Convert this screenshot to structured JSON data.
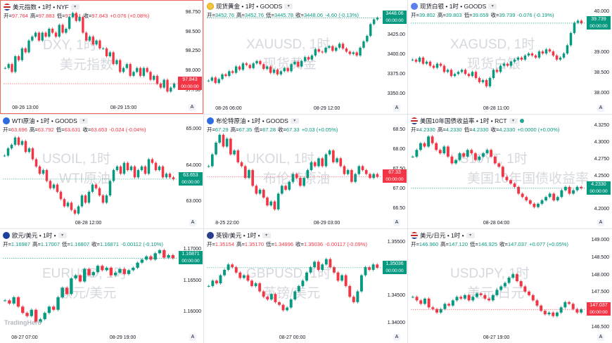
{
  "brand": "TradingHero",
  "panels": [
    {
      "id": "dxy",
      "selected": true,
      "flag": "usa",
      "title": "美元指数 • 1时 • NYF",
      "ohlc": {
        "open": "97.764",
        "high": "97.883",
        "low": "97.751",
        "close": "97.843",
        "change": "+0.076 (+0.08%)"
      },
      "direction": "down",
      "watermark": [
        "DXY, 1时",
        "美元指数"
      ],
      "y_ticks": [
        "98.750",
        "98.500",
        "98.250",
        "98.000",
        "97.750"
      ],
      "x_ticks": [
        "08-26 13:00",
        "08-29 15:00"
      ],
      "price_tag": "97.843",
      "countdown": "00:00:00",
      "tag_color": "#f23645",
      "chart_data": {
        "type": "candlestick",
        "ylim": [
          97.6,
          98.8
        ],
        "series": [
          98.05,
          98.1,
          98.0,
          98.2,
          98.15,
          98.3,
          98.25,
          98.4,
          98.45,
          98.5,
          98.4,
          98.5,
          98.45,
          98.55,
          98.5,
          98.45,
          98.6,
          98.5,
          98.55,
          98.7,
          98.75,
          98.65,
          98.7,
          98.5,
          98.4,
          98.45,
          98.35,
          98.4,
          98.3,
          98.3,
          98.2,
          98.25,
          98.1,
          98.15,
          98.0,
          98.05,
          98.1,
          97.95,
          98.0,
          98.05,
          97.95,
          98.05,
          98.0,
          97.9,
          97.95,
          97.85,
          97.8,
          97.9,
          97.75,
          97.8,
          97.85
        ]
      }
    },
    {
      "id": "xauusd",
      "selected": false,
      "flag": "gold",
      "title": "现货黄金 • 1时 • GOODS",
      "ohlc": {
        "open": "3452.76",
        "high": "3452.76",
        "low": "3445.78",
        "close": "3448.06",
        "change": "-4.60 (-0.13%)"
      },
      "direction": "up",
      "watermark": [
        "XAUUSD, 1时",
        "现货黄金"
      ],
      "y_ticks": [
        "3448.06",
        "3425.00",
        "3400.00",
        "3375.00",
        "3350.00"
      ],
      "x_ticks": [
        "08-26 06:00",
        "08-29 12:00"
      ],
      "price_tag": "3448.06",
      "countdown": "00:00:00",
      "tag_color": "#089981",
      "chart_data": {
        "type": "candlestick",
        "ylim": [
          3340,
          3460
        ],
        "series": [
          3368,
          3372,
          3365,
          3370,
          3376,
          3374,
          3380,
          3378,
          3386,
          3382,
          3390,
          3388,
          3384,
          3390,
          3393,
          3389,
          3383,
          3386,
          3378,
          3382,
          3376,
          3380,
          3384,
          3380,
          3389,
          3392,
          3386,
          3393,
          3398,
          3395,
          3400,
          3408,
          3405,
          3404,
          3410,
          3412,
          3406,
          3410,
          3415,
          3409,
          3405,
          3402,
          3404,
          3400,
          3410,
          3418,
          3425,
          3440,
          3446,
          3448
        ]
      }
    },
    {
      "id": "xagusd",
      "selected": false,
      "flag": "silver",
      "title": "现货白银 • 1时 • GOODS",
      "ohlc": {
        "open": "39.802",
        "high": "39.803",
        "low": "39.659",
        "close": "39.739",
        "change": "-0.076 (-0.19%)"
      },
      "direction": "up",
      "watermark": [
        "XAGUSD, 1时",
        "现货白银"
      ],
      "y_ticks": [
        "40.000",
        "39.739",
        "39.000",
        "38.500",
        "38.000"
      ],
      "x_ticks": [
        "08-28 11:00"
      ],
      "price_tag": "39.739",
      "countdown": "00:00:00",
      "tag_color": "#089981",
      "chart_data": {
        "type": "candlestick",
        "ylim": [
          37.8,
          40.1
        ],
        "series": [
          38.85,
          38.8,
          38.9,
          38.75,
          38.8,
          38.7,
          38.65,
          38.75,
          38.7,
          38.55,
          38.6,
          38.45,
          38.5,
          38.55,
          38.6,
          38.5,
          38.45,
          38.55,
          38.4,
          38.3,
          38.35,
          38.2,
          38.4,
          38.6,
          38.55,
          38.7,
          38.75,
          38.7,
          38.8,
          38.85,
          38.9,
          38.85,
          38.95,
          39.0,
          38.95,
          38.9,
          39.05,
          39.0,
          39.1,
          39.05,
          38.95,
          38.85,
          38.9,
          39.0,
          39.2,
          39.5,
          39.75,
          39.8,
          39.74
        ]
      }
    },
    {
      "id": "usoil",
      "selected": false,
      "flag": "oil",
      "title": "WTI原油 • 1时 • GOODS",
      "ohlc": {
        "open": "63.696",
        "high": "63.792",
        "low": "63.631",
        "close": "63.653",
        "change": "-0.024 (-0.04%)"
      },
      "direction": "down",
      "watermark": [
        "USOIL, 1时",
        "WTI原油"
      ],
      "y_ticks": [
        "65.000",
        "64.000",
        "63.653",
        "63.000"
      ],
      "x_ticks": [
        "08-28 12:00"
      ],
      "price_tag": "63.653",
      "countdown": "00:00:00",
      "tag_color": "#089981",
      "chart_data": {
        "type": "candlestick",
        "ylim": [
          62.6,
          65.2
        ],
        "series": [
          64.3,
          64.5,
          64.6,
          64.8,
          64.6,
          64.7,
          64.4,
          64.5,
          64.2,
          64.0,
          63.8,
          63.9,
          63.6,
          63.4,
          63.5,
          63.3,
          63.1,
          62.9,
          63.0,
          62.8,
          62.7,
          62.9,
          63.2,
          63.0,
          63.3,
          63.5,
          63.4,
          63.2,
          63.0,
          63.2,
          63.6,
          63.9,
          64.0,
          63.8,
          64.1,
          63.9,
          64.0,
          63.7,
          63.9,
          64.0,
          63.8,
          64.2,
          64.1,
          63.9,
          64.0,
          63.7,
          63.8,
          63.7,
          63.65
        ]
      }
    },
    {
      "id": "ukoil",
      "selected": false,
      "flag": "oil",
      "title": "布伦特原油 • 1时 • GOODS",
      "ohlc": {
        "open": "67.29",
        "high": "67.35",
        "low": "67.28",
        "close": "67.33",
        "change": "+0.03 (+0.05%)"
      },
      "direction": "up",
      "watermark": [
        "UKOIL, 1时",
        "布伦特原油"
      ],
      "y_ticks": [
        "68.50",
        "68.00",
        "67.50",
        "67.33",
        "67.00",
        "66.50"
      ],
      "x_ticks": [
        "8-25 22:00",
        "08-29 03:00"
      ],
      "price_tag": "67.33",
      "countdown": "00:00:00",
      "tag_color": "#f23645",
      "chart_data": {
        "type": "candlestick",
        "ylim": [
          66.3,
          68.7
        ],
        "series": [
          67.6,
          67.9,
          68.2,
          68.4,
          68.1,
          68.3,
          67.9,
          68.0,
          67.7,
          67.6,
          67.3,
          67.5,
          67.1,
          66.9,
          67.0,
          66.8,
          66.6,
          66.7,
          66.5,
          66.9,
          67.1,
          67.0,
          67.2,
          67.4,
          67.3,
          67.1,
          67.3,
          67.5,
          67.7,
          67.6,
          67.8,
          67.6,
          67.9,
          68.0,
          67.7,
          67.8,
          67.6,
          67.4,
          67.5,
          67.2,
          67.4,
          67.6,
          67.5,
          67.4,
          67.3,
          67.4,
          67.33
        ]
      }
    },
    {
      "id": "us10y",
      "selected": false,
      "flag": "usa",
      "title": "美国10年国债收益率 • 1时 • RCT",
      "ohlc": {
        "open": "4.2330",
        "high": "4.2330",
        "low": "4.2330",
        "close": "4.2330",
        "change": "+0.0000 (+0.00%)"
      },
      "direction": "up",
      "watermark": [
        "US10YT, 1时",
        "美国10年国债收益率"
      ],
      "y_ticks": [
        "4.3250",
        "4.3000",
        "4.2750",
        "4.2500",
        "4.2330",
        "4.2000"
      ],
      "x_ticks": [
        "08-28 04:00"
      ],
      "price_tag": "4.2330",
      "countdown": "00:00:00",
      "tag_color": "#089981",
      "chart_data": {
        "type": "candlestick",
        "ylim": [
          4.19,
          4.33
        ],
        "series": [
          4.28,
          4.29,
          4.3,
          4.295,
          4.31,
          4.3,
          4.29,
          4.285,
          4.295,
          4.28,
          4.27,
          4.275,
          4.285,
          4.28,
          4.29,
          4.285,
          4.275,
          4.28,
          4.285,
          4.29,
          4.28,
          4.27,
          4.265,
          4.25,
          4.245,
          4.24,
          4.235,
          4.225,
          4.22,
          4.215,
          4.21,
          4.205,
          4.21,
          4.215,
          4.22,
          4.225,
          4.215,
          4.22,
          4.23,
          4.235,
          4.225,
          4.23,
          4.235,
          4.233
        ]
      }
    },
    {
      "id": "eurusd",
      "selected": false,
      "flag": "eu",
      "title": "欧元/美元 • 1时 •",
      "ohlc": {
        "open": "1.16987",
        "high": "1.17007",
        "low": "1.16807",
        "close": "1.16871",
        "change": "-0.00112 (-0.10%)"
      },
      "direction": "up",
      "watermark": [
        "EURUSD, 1时",
        "欧元/美元"
      ],
      "y_ticks": [
        "1.17000",
        "1.16871",
        "1.16500",
        "1.16000"
      ],
      "x_ticks": [
        "08-27 07:00",
        "08-29 19:00"
      ],
      "price_tag": "1.16871",
      "countdown": "00:00:00",
      "tag_color": "#089981",
      "chart_data": {
        "type": "candlestick",
        "ylim": [
          1.157,
          1.172
        ],
        "series": [
          1.162,
          1.1615,
          1.1625,
          1.161,
          1.16,
          1.1595,
          1.1605,
          1.1585,
          1.159,
          1.16,
          1.161,
          1.1605,
          1.1625,
          1.164,
          1.163,
          1.1655,
          1.166,
          1.165,
          1.167,
          1.166,
          1.1665,
          1.1675,
          1.1668,
          1.1672,
          1.166,
          1.1664,
          1.167,
          1.1662,
          1.1668,
          1.1672,
          1.168,
          1.1685,
          1.169,
          1.1685,
          1.1695,
          1.17,
          1.1688,
          1.1692,
          1.1687
        ]
      }
    },
    {
      "id": "gbpusd",
      "selected": false,
      "flag": "gb",
      "title": "英镑/美元 • 1时 •",
      "ohlc": {
        "open": "1.35154",
        "high": "1.35170",
        "low": "1.34996",
        "close": "1.35036",
        "change": "-0.00117 (-0.09%)"
      },
      "direction": "down",
      "watermark": [
        "GBPUSD, 1时",
        "英镑/美元"
      ],
      "y_ticks": [
        "1.35500",
        "1.35036",
        "1.34500",
        "1.34000"
      ],
      "x_ticks": [
        "08-27 00:00"
      ],
      "price_tag": "1.35036",
      "countdown": "00:00:00",
      "tag_color": "#089981",
      "chart_data": {
        "type": "candlestick",
        "ylim": [
          1.3385,
          1.356
        ],
        "series": [
          1.347,
          1.348,
          1.3475,
          1.349,
          1.35,
          1.351,
          1.3505,
          1.3495,
          1.3485,
          1.349,
          1.348,
          1.347,
          1.3475,
          1.346,
          1.345,
          1.3445,
          1.3455,
          1.344,
          1.3435,
          1.3425,
          1.343,
          1.3445,
          1.346,
          1.347,
          1.348,
          1.3495,
          1.3505,
          1.3515,
          1.35,
          1.351,
          1.352,
          1.3505,
          1.3495,
          1.348,
          1.349,
          1.347,
          1.345,
          1.344,
          1.346,
          1.349,
          1.3505,
          1.35,
          1.351,
          1.3504
        ]
      }
    },
    {
      "id": "usdjpy",
      "selected": false,
      "flag": "usa",
      "title": "美元/日元 • 1时 •",
      "ohlc": {
        "open": "146.960",
        "high": "147.120",
        "low": "146.925",
        "close": "147.037",
        "change": "+0.077 (+0.05%)"
      },
      "direction": "up",
      "watermark": [
        "USDJPY, 1时",
        "美元/日元"
      ],
      "y_ticks": [
        "149.000",
        "148.500",
        "148.000",
        "147.500",
        "147.037",
        "146.500"
      ],
      "x_ticks": [
        "08-27 19:00"
      ],
      "price_tag": "147.037",
      "countdown": "00:00:00",
      "tag_color": "#f23645",
      "chart_data": {
        "type": "candlestick",
        "ylim": [
          146.4,
          149.1
        ],
        "series": [
          147.4,
          147.3,
          147.2,
          147.35,
          147.1,
          147.05,
          146.95,
          147.05,
          147.2,
          147.15,
          147.3,
          147.4,
          147.35,
          147.45,
          147.3,
          147.4,
          147.5,
          147.45,
          147.35,
          147.3,
          147.45,
          147.6,
          147.7,
          147.8,
          147.95,
          148.05,
          147.85,
          147.7,
          147.55,
          147.45,
          147.3,
          147.15,
          147.0,
          146.9,
          146.95,
          146.85,
          146.95,
          147.1,
          147.25,
          147.2,
          147.05,
          146.95,
          147.04
        ]
      }
    }
  ]
}
